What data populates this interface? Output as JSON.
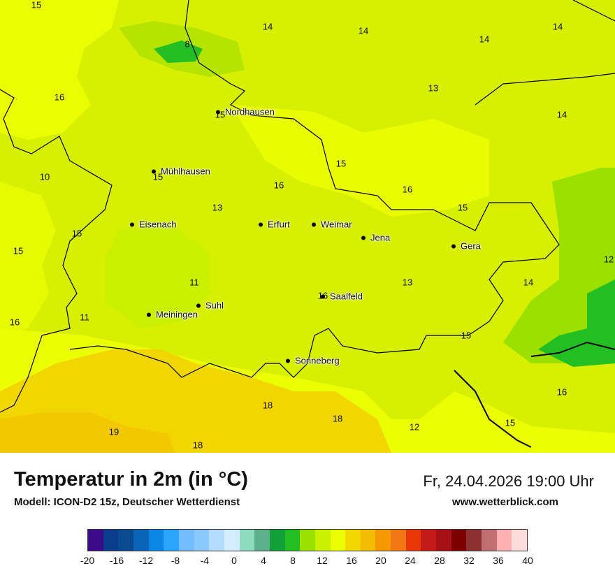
{
  "map": {
    "numbers": [
      "15",
      "8",
      "14",
      "14",
      "14",
      "14",
      "16",
      "13",
      "15",
      "14",
      "10",
      "15",
      "16",
      "15",
      "16",
      "13",
      "15",
      "15",
      "12",
      "15",
      "11",
      "13",
      "14",
      "16",
      "11",
      "16",
      "15",
      "16",
      "18",
      "18",
      "19",
      "18",
      "12",
      "15"
    ],
    "cities": [
      "Nordhausen",
      "Mühlhausen",
      "Eisenach",
      "Erfurt",
      "Weimar",
      "Jena",
      "Gera",
      "Saalfeld",
      "Suhl",
      "Meiningen",
      "Sonneberg"
    ]
  },
  "footer": {
    "title": "Temperatur in 2m (in °C)",
    "model": "Modell: ICON-D2 15z, Deutscher Wetterdienst",
    "datetime": "Fr, 24.04.2026 19:00 Uhr",
    "site": "www.wetterblick.com"
  },
  "legend": {
    "colors": [
      "#3b0a8a",
      "#083c8c",
      "#0a4a90",
      "#0a64b8",
      "#0a86e6",
      "#2aa4ff",
      "#72bcff",
      "#8ac8ff",
      "#b4dcff",
      "#d4ecff",
      "#8edcc0",
      "#5cb08c",
      "#11a038",
      "#22be22",
      "#9ce000",
      "#c8f000",
      "#ecff00",
      "#f2d600",
      "#f4bc00",
      "#f49a00",
      "#f27614",
      "#e8380a",
      "#c41a18",
      "#a81018",
      "#7c0000",
      "#8a3030",
      "#c07070",
      "#ffb0b0",
      "#ffdcdc"
    ],
    "ticks": [
      "-20",
      "-16",
      "-12",
      "-8",
      "-4",
      "0",
      "4",
      "8",
      "12",
      "16",
      "20",
      "24",
      "28",
      "32",
      "36",
      "40"
    ]
  }
}
